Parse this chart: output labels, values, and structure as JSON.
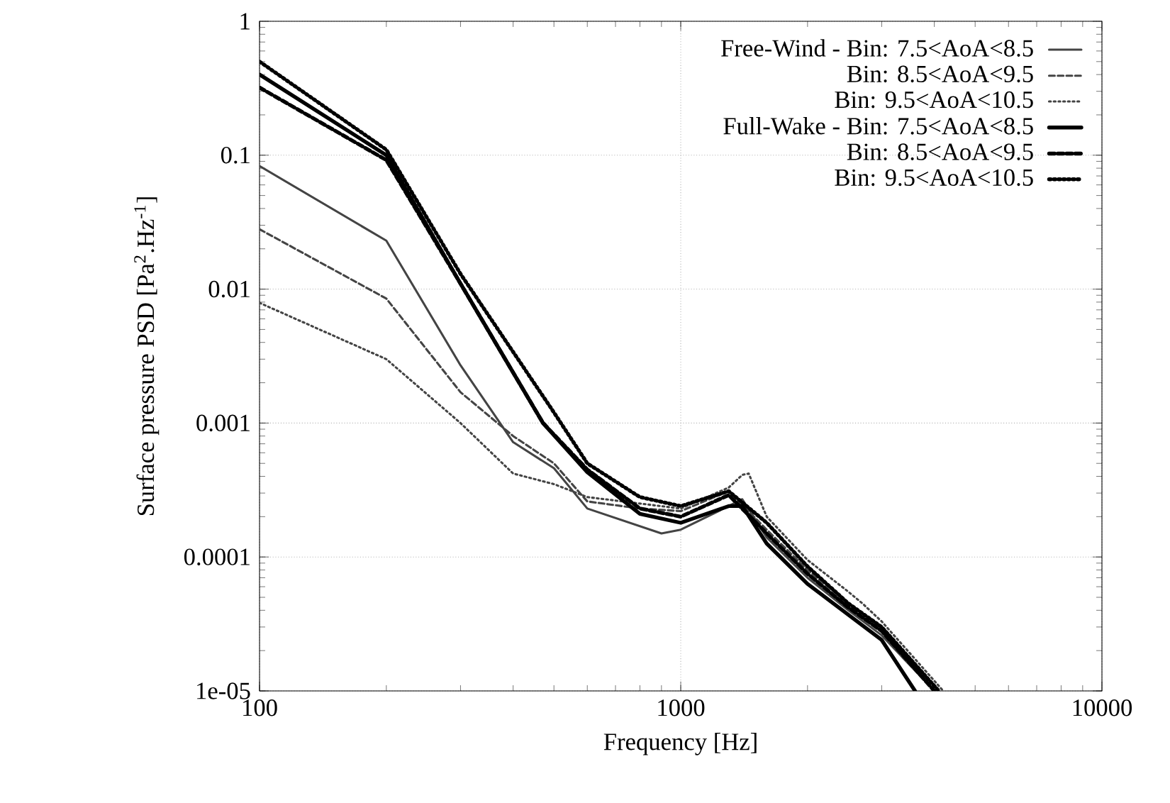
{
  "chart_data": {
    "type": "line",
    "xlabel": "Frequency [Hz]",
    "ylabel": "Surface pressure PSD [Pa$^{2}$.Hz$^{-1}$]",
    "log": "xy",
    "grid": true,
    "legend": "top right",
    "xlim": [
      100,
      10000
    ],
    "ylim": [
      1e-05,
      1
    ],
    "xticks": [
      100,
      1000,
      10000
    ],
    "yticks": [
      {
        "value": 1e-05,
        "label": "1e-05"
      },
      {
        "value": 0.0001,
        "label": "0.0001"
      },
      {
        "value": 0.001,
        "label": "0.001"
      },
      {
        "value": 0.01,
        "label": "0.01"
      },
      {
        "value": 0.1,
        "label": "0.1"
      },
      {
        "value": 1,
        "label": "1"
      }
    ],
    "series": [
      {
        "name": "Free-Wind - Bin: 7.5<AoA<8.5",
        "color": "#444444",
        "line_style": "solid",
        "x": [
          100,
          200,
          300,
          400,
          500,
          600,
          900,
          1000,
          1300,
          1400,
          1600,
          2000,
          2500,
          3000,
          4000
        ],
        "values": [
          0.083,
          0.023,
          0.0027,
          0.00072,
          0.00046,
          0.00023,
          0.00015,
          0.00016,
          0.00024,
          0.00027,
          0.00014,
          7e-05,
          4e-05,
          2.6e-05,
          1e-05
        ]
      },
      {
        "name": "Bin: 8.5<AoA<9.5",
        "color": "#444444",
        "line_style": "dashed",
        "x": [
          100,
          200,
          300,
          400,
          500,
          600,
          800,
          1000,
          1300,
          1600,
          2000,
          2500,
          3000,
          4000
        ],
        "values": [
          0.028,
          0.0085,
          0.0017,
          0.0008,
          0.0005,
          0.00026,
          0.00023,
          0.00022,
          0.00031,
          0.00016,
          8e-05,
          4.5e-05,
          3e-05,
          1e-05
        ]
      },
      {
        "name": "Bin: 9.5<AoA<10.5",
        "color": "#444444",
        "line_style": "dotted",
        "x": [
          100,
          200,
          300,
          400,
          500,
          600,
          1000,
          1300,
          1400,
          1450,
          1600,
          2000,
          2500,
          2700,
          3000,
          4200
        ],
        "values": [
          0.0079,
          0.003,
          0.001,
          0.00042,
          0.00035,
          0.00028,
          0.00023,
          0.00033,
          0.00041,
          0.00042,
          0.0002,
          9.5e-05,
          5.5e-05,
          4.5e-05,
          3.3e-05,
          1e-05
        ]
      },
      {
        "name": "Full-Wake - Bin: 7.5<AoA<8.5",
        "color": "#000000",
        "line_style": "solid",
        "x": [
          100,
          200,
          300,
          471,
          600,
          800,
          1000,
          1300,
          1400,
          1600,
          2000,
          2500,
          3000,
          3600
        ],
        "values": [
          0.4,
          0.1,
          0.011,
          0.001,
          0.00043,
          0.00021,
          0.00018,
          0.00024,
          0.00024,
          0.000126,
          6.3e-05,
          3.7e-05,
          2.4e-05,
          1e-05
        ]
      },
      {
        "name": "Bin: 8.5<AoA<9.5",
        "color": "#000000",
        "line_style": "dashed",
        "x": [
          100,
          200,
          300,
          471,
          600,
          800,
          1000,
          1300,
          1600,
          2000,
          2500,
          3000,
          4000
        ],
        "values": [
          0.32,
          0.092,
          0.011,
          0.001,
          0.00045,
          0.00023,
          0.0002,
          0.00029,
          0.00015,
          7.5e-05,
          4.2e-05,
          2.8e-05,
          1e-05
        ]
      },
      {
        "name": "Bin: 9.5<AoA<10.5",
        "color": "#000000",
        "line_style": "dotted",
        "x": [
          100,
          200,
          300,
          500,
          600,
          800,
          1000,
          1300,
          1600,
          2000,
          2500,
          3000,
          4100
        ],
        "values": [
          0.5,
          0.11,
          0.013,
          0.0012,
          0.0005,
          0.00028,
          0.00024,
          0.00031,
          0.00018,
          8.5e-05,
          4.5e-05,
          3e-05,
          1e-05
        ]
      }
    ]
  }
}
